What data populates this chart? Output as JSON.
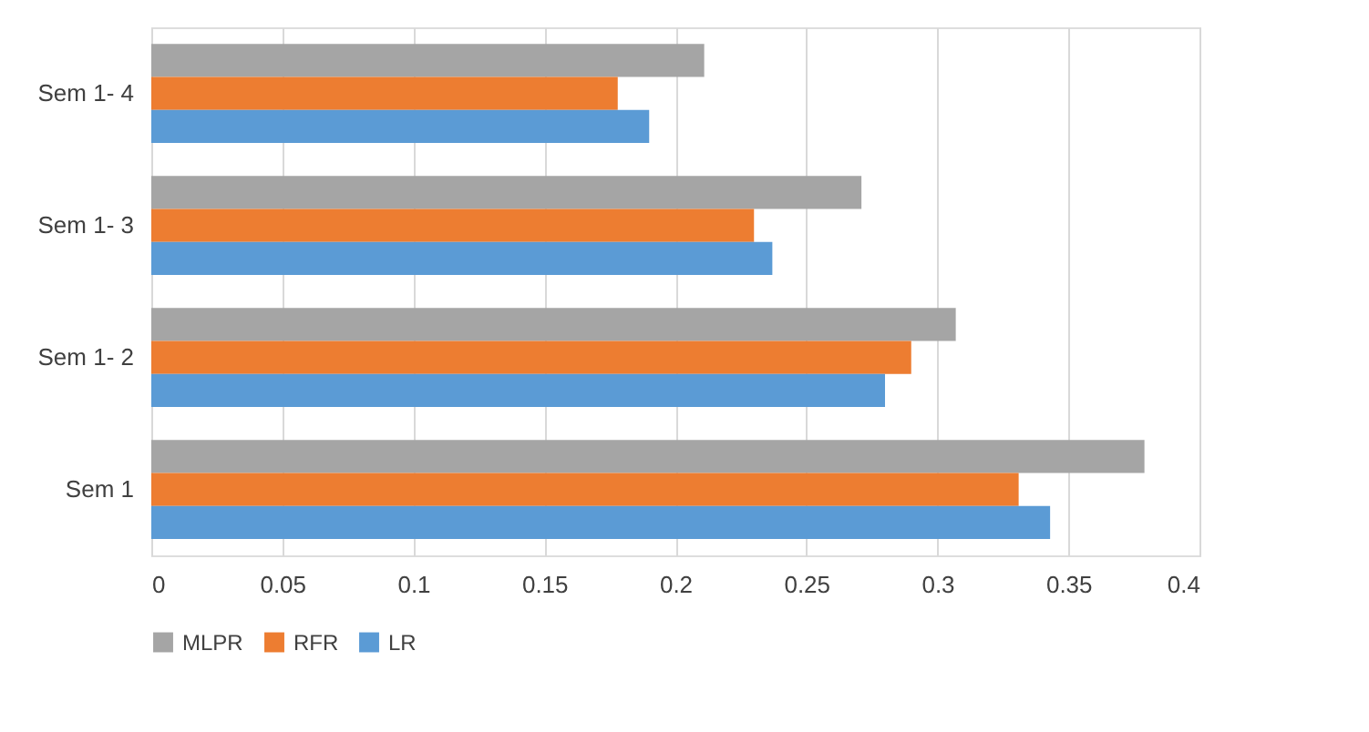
{
  "chart_data": {
    "type": "bar",
    "orientation": "horizontal",
    "categories": [
      "Sem 1- 4",
      "Sem 1- 3",
      "Sem 1- 2",
      "Sem 1"
    ],
    "series": [
      {
        "name": "MLPR",
        "color": "#a5a5a5",
        "values": [
          0.211,
          0.271,
          0.307,
          0.379
        ]
      },
      {
        "name": "RFR",
        "color": "#ed7d31",
        "values": [
          0.178,
          0.23,
          0.29,
          0.331
        ]
      },
      {
        "name": "LR",
        "color": "#5b9bd5",
        "values": [
          0.19,
          0.237,
          0.28,
          0.343
        ]
      }
    ],
    "xlim": [
      0,
      0.4
    ],
    "xticks": [
      0,
      0.05,
      0.1,
      0.15,
      0.2,
      0.25,
      0.3,
      0.35,
      0.4
    ],
    "grid": "x",
    "legend": "bottom"
  }
}
